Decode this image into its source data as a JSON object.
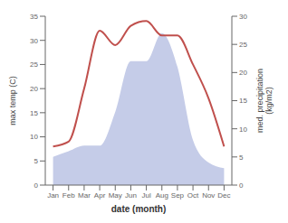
{
  "chart_data": {
    "type": "line",
    "x": [
      1,
      2,
      3,
      4,
      5,
      6,
      7,
      8,
      9,
      10,
      11,
      12
    ],
    "xlim": [
      0.5,
      12.5
    ],
    "xticks": [
      {
        "value": 1,
        "label": "Jan"
      },
      {
        "value": 2,
        "label": "Feb"
      },
      {
        "value": 3,
        "label": "Mar"
      },
      {
        "value": 4,
        "label": "Apr"
      },
      {
        "value": 5,
        "label": "May"
      },
      {
        "value": 6,
        "label": "Jun"
      },
      {
        "value": 7,
        "label": "Jul"
      },
      {
        "value": 8,
        "label": "Aug"
      },
      {
        "value": 9,
        "label": "Sep"
      },
      {
        "value": 10,
        "label": "Oct"
      },
      {
        "value": 11,
        "label": "Nov"
      },
      {
        "value": 12,
        "label": "Dec"
      }
    ],
    "xlabel": "date (month)",
    "ylabel": "max temp (C)",
    "y2label": "med. precipitation\n(kg/m2)",
    "ylim": [
      0,
      35
    ],
    "yticks": [
      0,
      5,
      10,
      15,
      20,
      25,
      30,
      35
    ],
    "y2lim": [
      0,
      30
    ],
    "y2ticks": [
      0,
      5,
      10,
      15,
      20,
      25,
      30
    ],
    "grid": false,
    "series": [
      {
        "type": "area",
        "axis": "y2",
        "color": "#c5cce8",
        "values": [
          5,
          6,
          7,
          7,
          13,
          22,
          22,
          27,
          21,
          8,
          4,
          3
        ]
      },
      {
        "type": "line",
        "color": "#c0504d",
        "values": [
          8,
          9,
          20,
          32,
          29,
          33,
          34,
          31,
          31,
          25,
          18,
          8
        ]
      }
    ]
  }
}
